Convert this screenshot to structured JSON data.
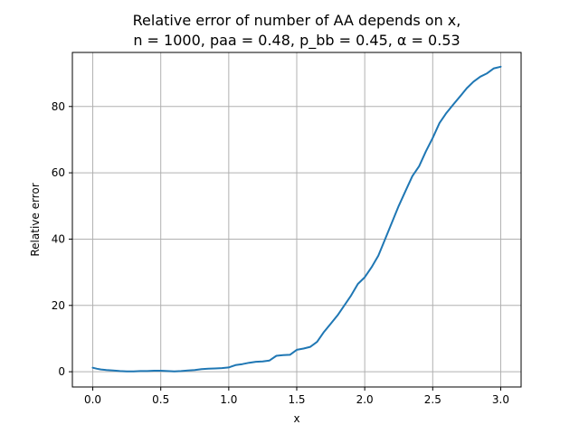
{
  "chart_data": {
    "type": "line",
    "title_lines": [
      "Relative error of number of AA depends on x,",
      "n = 1000, paa = 0.48, p_bb = 0.45, α = 0.53"
    ],
    "xlabel": "x",
    "ylabel": "Relative error",
    "xlim": [
      -0.15,
      3.15
    ],
    "ylim": [
      -4.6,
      96.3
    ],
    "xticks": [
      0.0,
      0.5,
      1.0,
      1.5,
      2.0,
      2.5,
      3.0
    ],
    "xtick_labels": [
      "0.0",
      "0.5",
      "1.0",
      "1.5",
      "2.0",
      "2.5",
      "3.0"
    ],
    "yticks": [
      0,
      20,
      40,
      60,
      80
    ],
    "ytick_labels": [
      "0",
      "20",
      "40",
      "60",
      "80"
    ],
    "grid": true,
    "series": [
      {
        "color": "#1f77b4",
        "x": [
          0.0,
          0.03,
          0.06,
          0.1,
          0.15,
          0.2,
          0.25,
          0.3,
          0.35,
          0.4,
          0.45,
          0.5,
          0.55,
          0.6,
          0.65,
          0.7,
          0.75,
          0.8,
          0.85,
          0.9,
          0.95,
          1.0,
          1.05,
          1.1,
          1.15,
          1.2,
          1.25,
          1.3,
          1.35,
          1.4,
          1.45,
          1.5,
          1.55,
          1.6,
          1.65,
          1.7,
          1.75,
          1.8,
          1.85,
          1.9,
          1.95,
          2.0,
          2.05,
          2.1,
          2.15,
          2.2,
          2.25,
          2.3,
          2.35,
          2.4,
          2.45,
          2.5,
          2.55,
          2.6,
          2.65,
          2.7,
          2.75,
          2.8,
          2.85,
          2.9,
          2.95,
          3.0
        ],
        "y": [
          1.2,
          0.9,
          0.7,
          0.5,
          0.4,
          0.2,
          0.1,
          0.1,
          0.2,
          0.2,
          0.3,
          0.3,
          0.2,
          0.1,
          0.2,
          0.4,
          0.5,
          0.8,
          0.9,
          1.0,
          1.1,
          1.3,
          2.0,
          2.3,
          2.7,
          3.0,
          3.1,
          3.4,
          4.8,
          5.0,
          5.1,
          6.6,
          7.0,
          7.5,
          9.0,
          12.0,
          14.5,
          17.0,
          20.0,
          23.0,
          26.5,
          28.5,
          31.5,
          35.0,
          40.0,
          45.0,
          50.0,
          54.5,
          59.0,
          62.0,
          66.5,
          70.5,
          75.0,
          78.0,
          80.5,
          83.0,
          85.5,
          87.5,
          89.0,
          90.0,
          91.5,
          92.0
        ]
      }
    ]
  }
}
